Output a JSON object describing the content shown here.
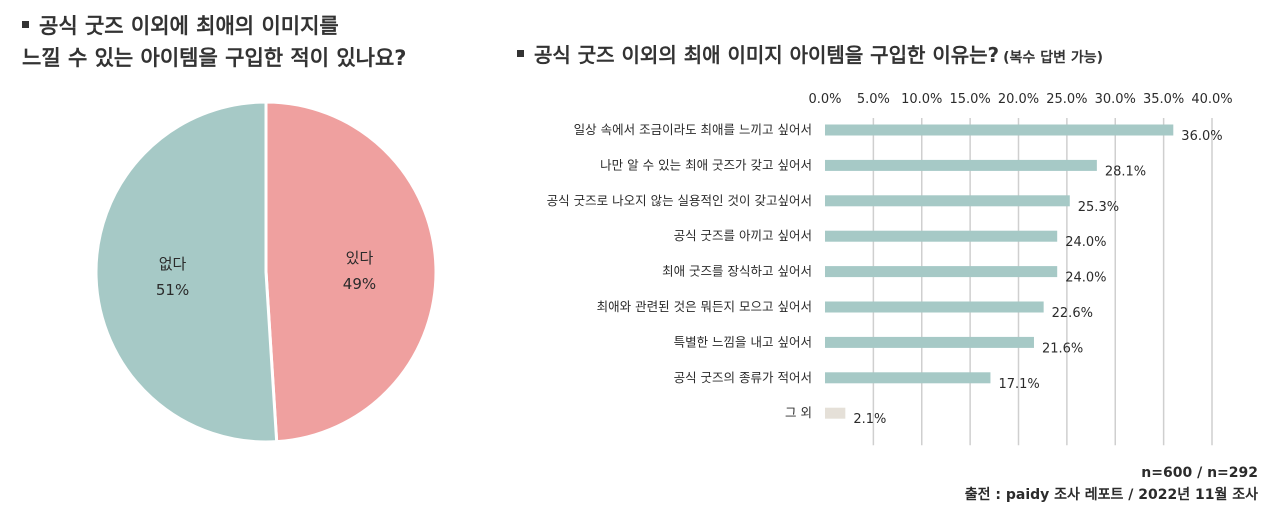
{
  "left": {
    "title_line1": "공식 굿즈 이외에 최애의 이미지를",
    "title_line2": "느낄 수 있는 아이템을 구입한 적이 있나요?"
  },
  "right": {
    "title": "공식 굿즈 이외의 최애 이미지 아이템을 구입한 이유는?",
    "subtitle": "(복수 답변 가능)"
  },
  "colors": {
    "teal": "#a6c9c6",
    "pink": "#efa09f",
    "beige": "#e5e0d8",
    "grid": "#cfcfcf"
  },
  "chart_data": [
    {
      "type": "pie",
      "title": "공식 굿즈 이외에 최애의 이미지를 느낄 수 있는 아이템을 구입한 적이 있나요?",
      "slices": [
        {
          "label": "있다",
          "value": 49,
          "value_label": "49%",
          "color": "#efa09f"
        },
        {
          "label": "없다",
          "value": 51,
          "value_label": "51%",
          "color": "#a6c9c6"
        }
      ]
    },
    {
      "type": "bar",
      "orientation": "horizontal",
      "title": "공식 굿즈 이외의 최애 이미지 아이템을 구입한 이유는?",
      "xlim": [
        0,
        40
      ],
      "ticks": [
        "0.0%",
        "5.0%",
        "10.0%",
        "15.0%",
        "20.0%",
        "25.0%",
        "30.0%",
        "35.0%",
        "40.0%"
      ],
      "grid": true,
      "categories": [
        "일상 속에서 조금이라도 최애를 느끼고 싶어서",
        "나만 알 수 있는 최애 굿즈가 갖고 싶어서",
        "공식 굿즈로 나오지 않는 실용적인 것이 갖고싶어서",
        "공식 굿즈를 아끼고 싶어서",
        "최애 굿즈를 장식하고 싶어서",
        "최애와 관련된 것은 뭐든지 모으고 싶어서",
        "특별한 느낌을 내고 싶어서",
        "공식 굿즈의 종류가 적어서",
        "그 외"
      ],
      "values": [
        36.0,
        28.1,
        25.3,
        24.0,
        24.0,
        22.6,
        21.6,
        17.1,
        2.1
      ],
      "value_labels": [
        "36.0%",
        "28.1%",
        "25.3%",
        "24.0%",
        "24.0%",
        "22.6%",
        "21.6%",
        "17.1%",
        "2.1%"
      ],
      "colors": [
        "#a6c9c6",
        "#a6c9c6",
        "#a6c9c6",
        "#a6c9c6",
        "#a6c9c6",
        "#a6c9c6",
        "#a6c9c6",
        "#a6c9c6",
        "#e5e0d8"
      ]
    }
  ],
  "footer": {
    "sample": "n=600 / n=292",
    "source": "출전 : paidy 조사 레포트 / 2022년 11월 조사"
  }
}
